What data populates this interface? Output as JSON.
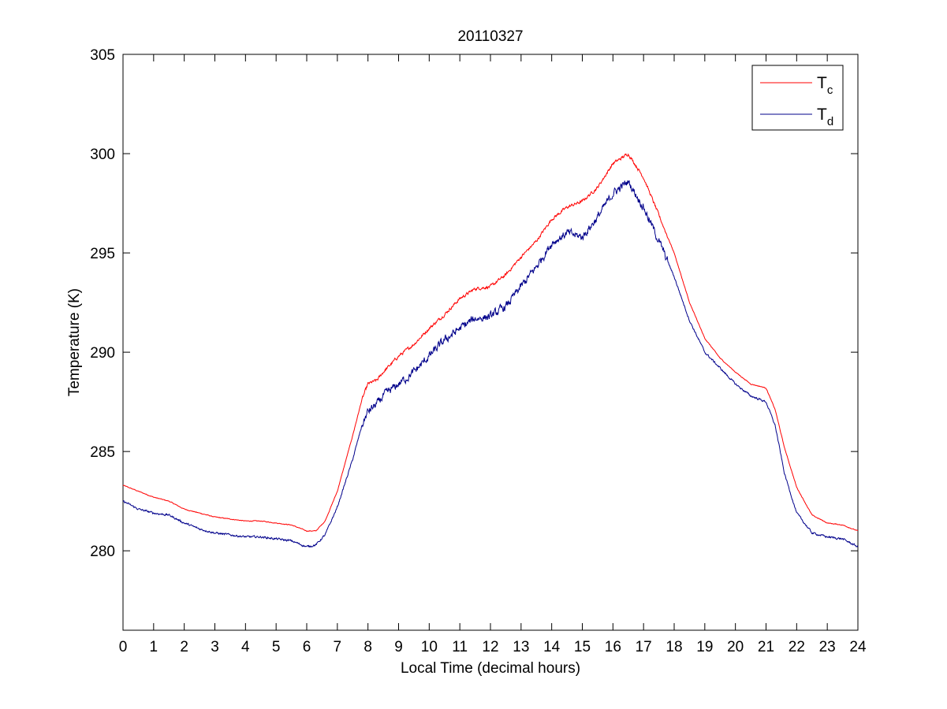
{
  "chart_data": {
    "type": "line",
    "title": "20110327",
    "xlabel": "Local Time (decimal hours)",
    "ylabel": "Temperature (K)",
    "xlim": [
      0,
      24
    ],
    "ylim": [
      276,
      305
    ],
    "xticks": [
      0,
      1,
      2,
      3,
      4,
      5,
      6,
      7,
      8,
      9,
      10,
      11,
      12,
      13,
      14,
      15,
      16,
      17,
      18,
      19,
      20,
      21,
      22,
      23,
      24
    ],
    "yticks": [
      280,
      285,
      290,
      295,
      300,
      305
    ],
    "grid": false,
    "legend_position": "top-right",
    "series": [
      {
        "name": "T",
        "subscript": "c",
        "color": "#ff0000",
        "noise": 0.12,
        "x": [
          0,
          0.5,
          1,
          1.5,
          2,
          2.5,
          3,
          3.5,
          4,
          4.5,
          5,
          5.5,
          6,
          6.3,
          6.6,
          7,
          7.5,
          7.8,
          8,
          8.3,
          8.5,
          9,
          9.5,
          10,
          10.5,
          11,
          11.5,
          12,
          12.5,
          13,
          13.5,
          14,
          14.5,
          15,
          15.5,
          16,
          16.5,
          17,
          17.5,
          18,
          18.5,
          19,
          19.5,
          20,
          20.5,
          21,
          21.3,
          21.6,
          22,
          22.5,
          23,
          23.5,
          24
        ],
        "y": [
          283.3,
          283.0,
          282.7,
          282.5,
          282.1,
          281.9,
          281.7,
          281.6,
          281.5,
          281.5,
          281.4,
          281.3,
          281.0,
          281.0,
          281.5,
          283.0,
          285.8,
          287.6,
          288.4,
          288.6,
          289.0,
          289.8,
          290.4,
          291.2,
          291.9,
          292.7,
          293.2,
          293.3,
          293.9,
          294.8,
          295.6,
          296.7,
          297.3,
          297.6,
          298.3,
          299.5,
          300.0,
          298.8,
          296.9,
          295.0,
          292.5,
          290.7,
          289.7,
          289.0,
          288.4,
          288.2,
          287.1,
          285.2,
          283.2,
          281.8,
          281.4,
          281.3,
          281.0
        ]
      },
      {
        "name": "T",
        "subscript": "d",
        "color": "#00008b",
        "noise": 0.32,
        "x": [
          0,
          0.5,
          1,
          1.5,
          2,
          2.5,
          3,
          3.5,
          4,
          4.5,
          5,
          5.5,
          6,
          6.3,
          6.6,
          7,
          7.5,
          7.8,
          8,
          8.3,
          8.5,
          9,
          9.5,
          10,
          10.5,
          11,
          11.5,
          12,
          12.5,
          13,
          13.5,
          14,
          14.5,
          15,
          15.5,
          16,
          16.5,
          17,
          17.5,
          18,
          18.5,
          19,
          19.5,
          20,
          20.5,
          21,
          21.3,
          21.6,
          22,
          22.5,
          23,
          23.5,
          24
        ],
        "y": [
          282.5,
          282.1,
          281.9,
          281.8,
          281.4,
          281.1,
          280.9,
          280.8,
          280.7,
          280.7,
          280.6,
          280.5,
          280.2,
          280.3,
          280.8,
          282.2,
          284.6,
          286.3,
          287.0,
          287.4,
          287.8,
          288.4,
          289.0,
          289.8,
          290.6,
          291.2,
          291.7,
          291.8,
          292.3,
          293.3,
          294.3,
          295.5,
          296.0,
          295.8,
          296.8,
          298.0,
          298.6,
          297.3,
          295.6,
          293.8,
          291.6,
          290.0,
          289.2,
          288.4,
          287.8,
          287.5,
          286.3,
          283.9,
          281.9,
          280.9,
          280.7,
          280.6,
          280.2
        ]
      }
    ]
  }
}
